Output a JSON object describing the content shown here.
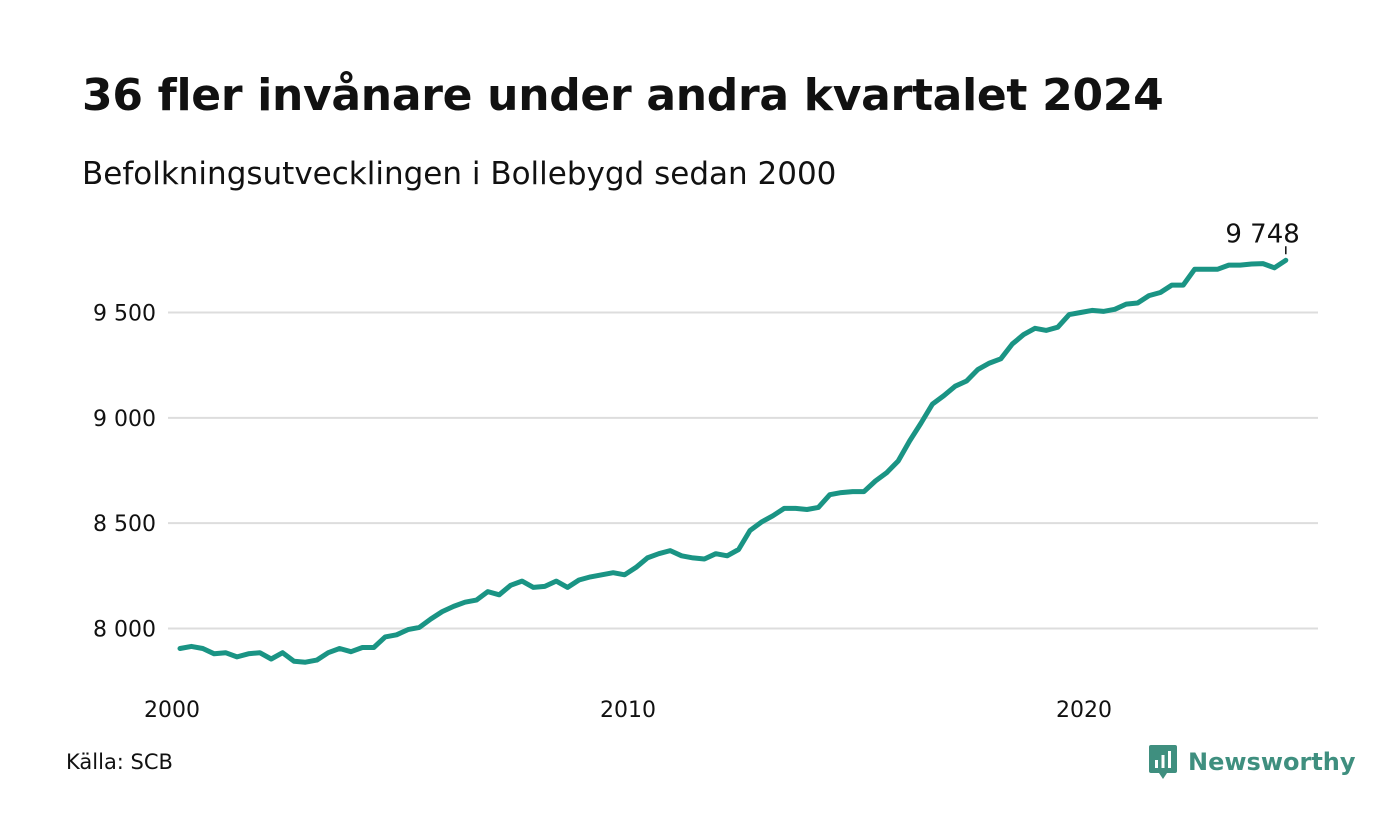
{
  "header": {
    "title": "36 fler invånare under andra kvartalet 2024",
    "subtitle": "Befolkningsutvecklingen i Bollebygd sedan 2000"
  },
  "footer": {
    "source": "Källa: SCB",
    "brand": "Newsworthy",
    "brand_icon": "newsworthy-logo-icon"
  },
  "colors": {
    "line": "#1a9484",
    "grid": "#dddddd",
    "brand": "#3f8f7f"
  },
  "chart_data": {
    "type": "line",
    "title": "36 fler invånare under andra kvartalet 2024",
    "subtitle": "Befolkningsutvecklingen i Bollebygd sedan 2000",
    "xlabel": "",
    "ylabel": "",
    "x_ticks": [
      "2000",
      "2010",
      "2020"
    ],
    "y_ticks": [
      8000,
      8500,
      9000,
      9500
    ],
    "y_tick_labels": [
      "8 000",
      "8 500",
      "9 000",
      "9 500"
    ],
    "ylim": [
      7800,
      9760
    ],
    "grid": true,
    "end_label": "9 748",
    "x_format": "year-quarter",
    "series": [
      {
        "x": [
          "2000-Q1",
          "2000-Q2",
          "2000-Q3",
          "2000-Q4",
          "2001-Q1",
          "2001-Q2",
          "2001-Q3",
          "2001-Q4",
          "2002-Q1",
          "2002-Q2",
          "2002-Q3",
          "2002-Q4",
          "2003-Q1",
          "2003-Q2",
          "2003-Q3",
          "2003-Q4",
          "2004-Q1",
          "2004-Q2",
          "2004-Q3",
          "2004-Q4",
          "2005-Q1",
          "2005-Q2",
          "2005-Q3",
          "2005-Q4",
          "2006-Q1",
          "2006-Q2",
          "2006-Q3",
          "2006-Q4",
          "2007-Q1",
          "2007-Q2",
          "2007-Q3",
          "2007-Q4",
          "2008-Q1",
          "2008-Q2",
          "2008-Q3",
          "2008-Q4",
          "2009-Q1",
          "2009-Q2",
          "2009-Q3",
          "2009-Q4",
          "2010-Q1",
          "2010-Q2",
          "2010-Q3",
          "2010-Q4",
          "2011-Q1",
          "2011-Q2",
          "2011-Q3",
          "2011-Q4",
          "2012-Q1",
          "2012-Q2",
          "2012-Q3",
          "2012-Q4",
          "2013-Q1",
          "2013-Q2",
          "2013-Q3",
          "2013-Q4",
          "2014-Q1",
          "2014-Q2",
          "2014-Q3",
          "2014-Q4",
          "2015-Q1",
          "2015-Q2",
          "2015-Q3",
          "2015-Q4",
          "2016-Q1",
          "2016-Q2",
          "2016-Q3",
          "2016-Q4",
          "2017-Q1",
          "2017-Q2",
          "2017-Q3",
          "2017-Q4",
          "2018-Q1",
          "2018-Q2",
          "2018-Q3",
          "2018-Q4",
          "2019-Q1",
          "2019-Q2",
          "2019-Q3",
          "2019-Q4",
          "2020-Q1",
          "2020-Q2",
          "2020-Q3",
          "2020-Q4",
          "2021-Q1",
          "2021-Q2",
          "2021-Q3",
          "2021-Q4",
          "2022-Q1",
          "2022-Q2",
          "2022-Q3",
          "2022-Q4",
          "2023-Q1",
          "2023-Q2",
          "2023-Q3",
          "2023-Q4",
          "2024-Q1",
          "2024-Q2"
        ],
        "values": [
          7905,
          7915,
          7905,
          7880,
          7885,
          7865,
          7880,
          7885,
          7855,
          7885,
          7845,
          7840,
          7850,
          7885,
          7905,
          7890,
          7910,
          7910,
          7960,
          7970,
          7995,
          8005,
          8045,
          8080,
          8105,
          8125,
          8135,
          8175,
          8160,
          8205,
          8225,
          8195,
          8200,
          8225,
          8195,
          8230,
          8245,
          8255,
          8265,
          8255,
          8290,
          8335,
          8355,
          8370,
          8345,
          8335,
          8330,
          8355,
          8345,
          8375,
          8465,
          8505,
          8535,
          8570,
          8570,
          8565,
          8575,
          8635,
          8645,
          8650,
          8650,
          8700,
          8740,
          8795,
          8890,
          8975,
          9065,
          9105,
          9150,
          9175,
          9230,
          9260,
          9280,
          9350,
          9395,
          9425,
          9415,
          9430,
          9490,
          9500,
          9510,
          9505,
          9515,
          9540,
          9545,
          9580,
          9595,
          9630,
          9630,
          9705,
          9705,
          9705,
          9725,
          9725,
          9730,
          9732,
          9712,
          9748
        ]
      }
    ]
  }
}
